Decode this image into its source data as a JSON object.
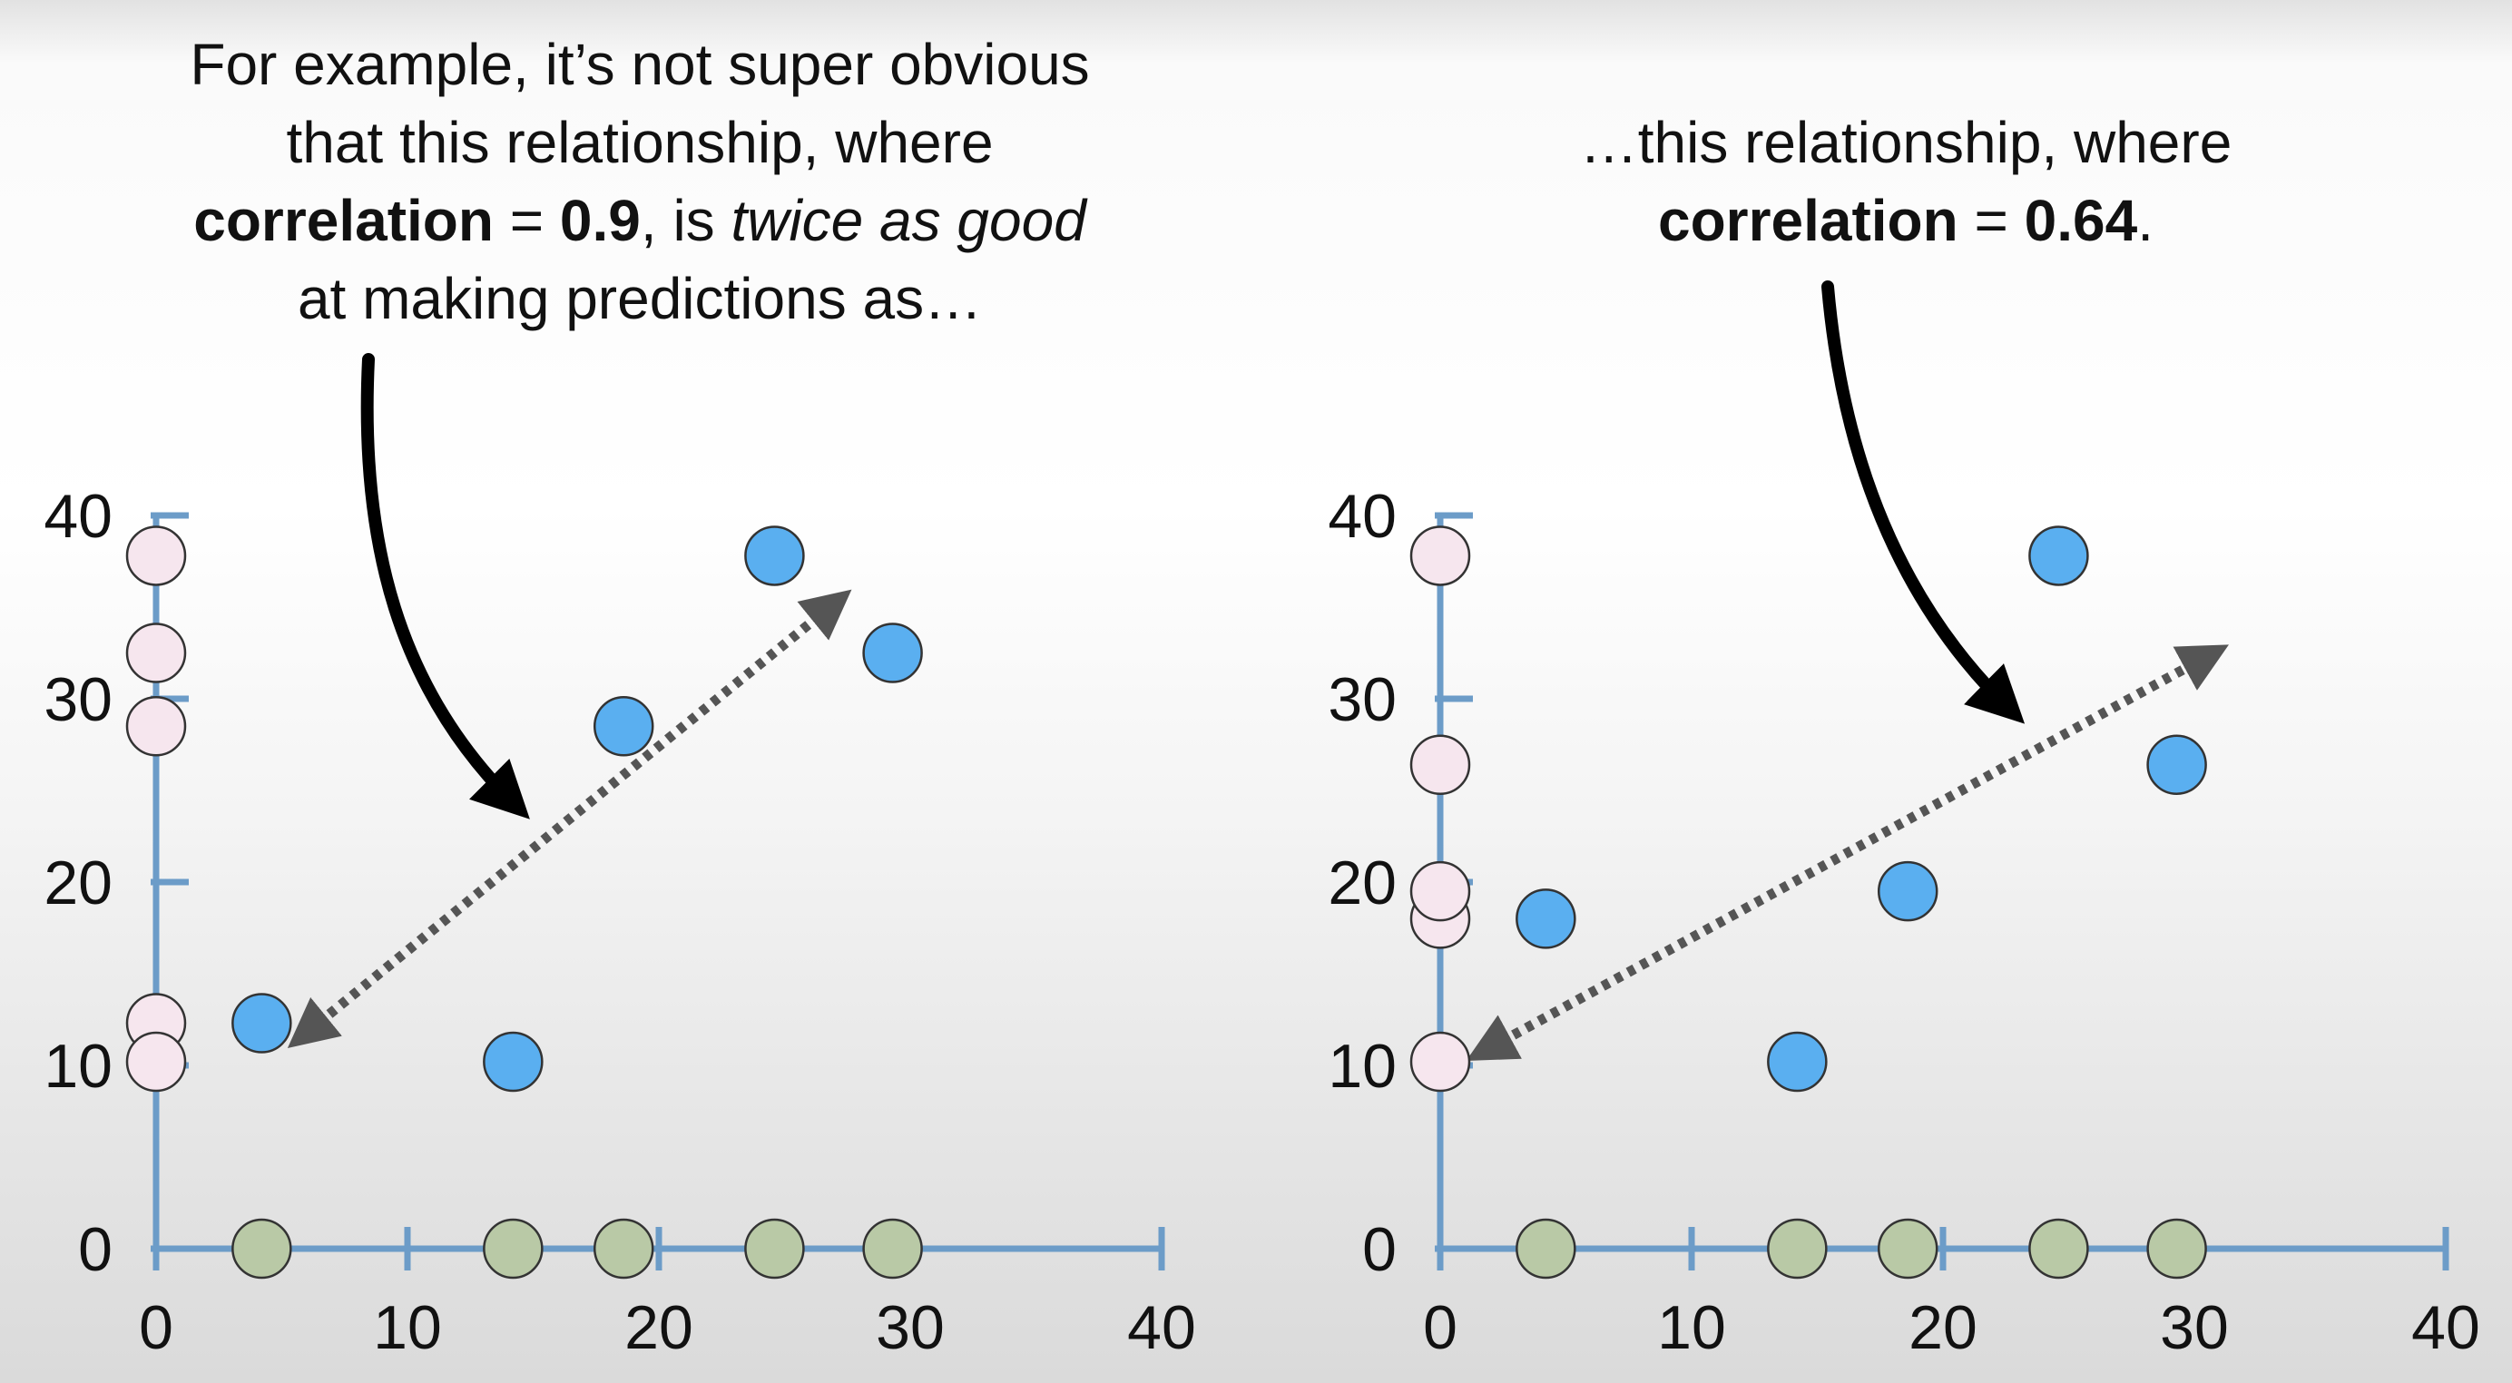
{
  "caption_left": {
    "line1": "For example, it’s not super obvious",
    "line2": "that this relationship, where",
    "line3_bold": "correlation",
    "line3_eq": " = ",
    "line3_value": "0.9",
    "line3_mid": ", is ",
    "line3_italic": "twice as good",
    "line4": "at making predictions as…"
  },
  "caption_right": {
    "line1": "…this relationship, where",
    "line2_bold": "correlation",
    "line2_eq": " = ",
    "line2_value": "0.64",
    "line2_end": "."
  },
  "colors": {
    "axis": "#6c9cc8",
    "point_blue": "#5aaff0",
    "point_y_marginal": "#f6e6ee",
    "point_x_marginal": "#b9c9a6",
    "arrow": "#000000",
    "dotted_arrow": "#555555"
  },
  "chart_data": [
    {
      "type": "scatter",
      "xlim": [
        0,
        40
      ],
      "ylim": [
        0,
        40
      ],
      "x_ticks": [
        "0",
        "10",
        "20",
        "30",
        "40"
      ],
      "y_ticks": [
        "0",
        "10",
        "20",
        "30",
        "40"
      ],
      "annotation_value": "0.9",
      "points": [
        {
          "x": 4.2,
          "y": 12.3
        },
        {
          "x": 14.2,
          "y": 10.2
        },
        {
          "x": 18.6,
          "y": 28.5
        },
        {
          "x": 24.6,
          "y": 37.8
        },
        {
          "x": 29.3,
          "y": 32.5
        }
      ]
    },
    {
      "type": "scatter",
      "xlim": [
        0,
        40
      ],
      "ylim": [
        0,
        40
      ],
      "x_ticks": [
        "0",
        "10",
        "20",
        "30",
        "40"
      ],
      "y_ticks": [
        "0",
        "10",
        "20",
        "30",
        "40"
      ],
      "annotation_value": "0.64",
      "points": [
        {
          "x": 4.2,
          "y": 18.0
        },
        {
          "x": 14.2,
          "y": 10.2
        },
        {
          "x": 18.6,
          "y": 19.5
        },
        {
          "x": 24.6,
          "y": 37.8
        },
        {
          "x": 29.3,
          "y": 26.4
        }
      ]
    }
  ]
}
